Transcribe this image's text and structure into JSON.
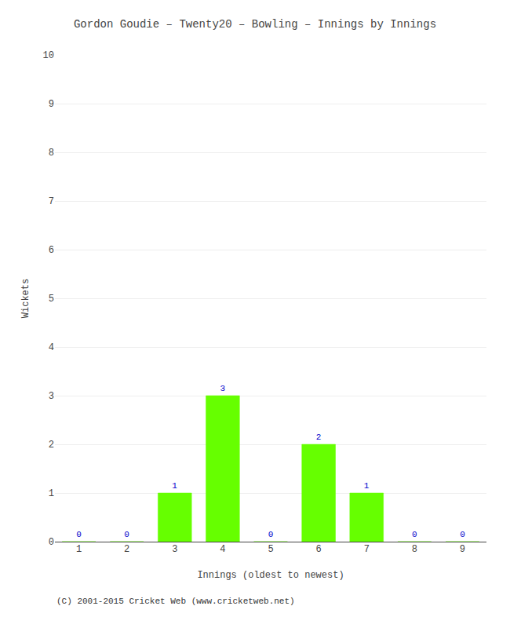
{
  "chart_data": {
    "type": "bar",
    "title": "Gordon Goudie – Twenty20 – Bowling – Innings by Innings",
    "xlabel": "Innings (oldest to newest)",
    "ylabel": "Wickets",
    "categories": [
      1,
      2,
      3,
      4,
      5,
      6,
      7,
      8,
      9
    ],
    "values": [
      0,
      0,
      1,
      3,
      0,
      2,
      1,
      0,
      0
    ],
    "color": "#66ff00",
    "ylim": [
      0,
      10
    ],
    "yticks": [
      0,
      1,
      2,
      3,
      4,
      5,
      6,
      7,
      8,
      9,
      10
    ],
    "grid": true,
    "data_labels": true,
    "annotations": [
      "(C) 2001-2015 Cricket Web (www.cricketweb.net)"
    ]
  }
}
